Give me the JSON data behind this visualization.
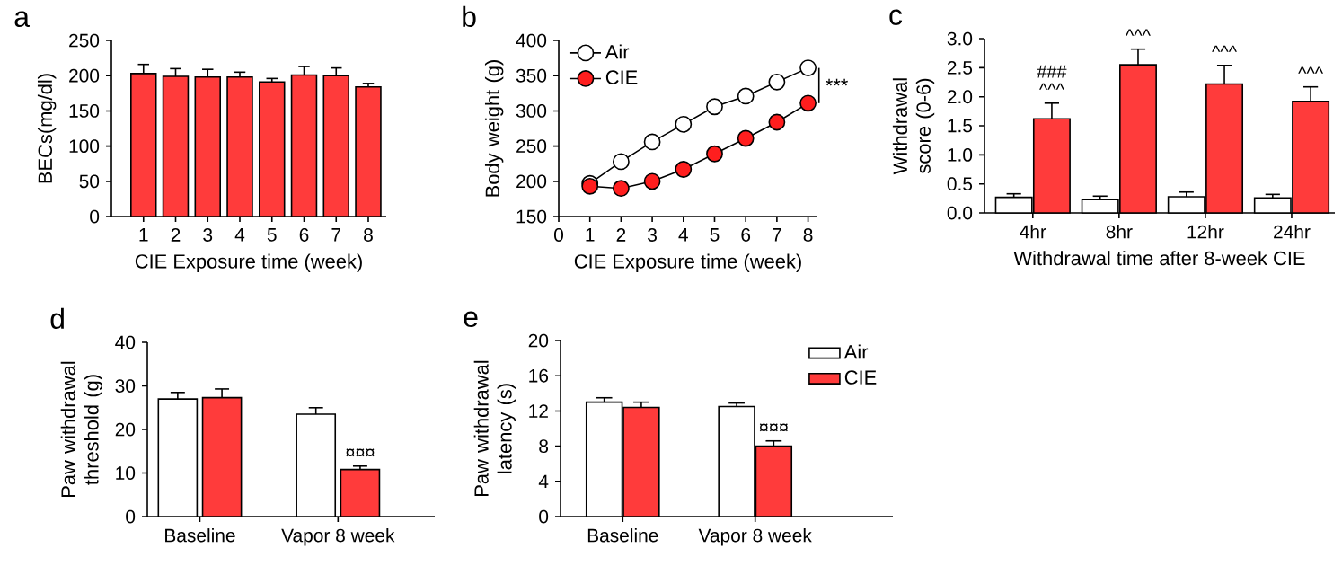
{
  "chart_data": [
    {
      "type": "bar",
      "title": "a",
      "xlabel": "CIE Exposure time (week)",
      "ylabel": "BECs(mg/dl)",
      "categories": [
        "1",
        "2",
        "3",
        "4",
        "5",
        "6",
        "7",
        "8"
      ],
      "values": [
        203,
        199,
        198,
        198,
        191,
        201,
        200,
        184
      ],
      "errors": [
        13,
        11,
        11,
        7,
        5,
        12,
        11,
        5
      ],
      "color": "#ff3b3b",
      "ylim": [
        0,
        250
      ],
      "yticks": [
        0,
        50,
        100,
        150,
        200,
        250
      ]
    },
    {
      "type": "line",
      "title": "b",
      "xlabel": "CIE Exposure time (week)",
      "ylabel": "Body weight (g)",
      "x": [
        1,
        2,
        3,
        4,
        5,
        6,
        7,
        8
      ],
      "series": [
        {
          "name": "Air",
          "color": "#ffffff",
          "values": [
            197,
            228,
            256,
            281,
            306,
            321,
            341,
            361
          ]
        },
        {
          "name": "CIE",
          "color": "#ff1e1e",
          "values": [
            193,
            190,
            200,
            217,
            239,
            261,
            284,
            311
          ]
        }
      ],
      "xlim": [
        0,
        8.3
      ],
      "xticks": [
        0,
        1,
        2,
        3,
        4,
        5,
        6,
        7,
        8
      ],
      "ylim": [
        150,
        400
      ],
      "yticks": [
        150,
        200,
        250,
        300,
        350,
        400
      ],
      "marker": "circle",
      "line_style": "solid",
      "legend": "top left",
      "annotations": [
        "***"
      ]
    },
    {
      "type": "bar",
      "title": "c",
      "xlabel": "Withdrawal time after 8-week CIE",
      "ylabel": "Withdrawal score (0-6)",
      "categories": [
        "4hr",
        "8hr",
        "12hr",
        "24hr"
      ],
      "series": [
        {
          "color": "#ffffff",
          "values": [
            0.27,
            0.23,
            0.28,
            0.26
          ],
          "errors": [
            0.06,
            0.06,
            0.08,
            0.06
          ]
        },
        {
          "color": "#ff3b3b",
          "values": [
            1.62,
            2.55,
            2.22,
            1.92
          ],
          "errors": [
            0.27,
            0.27,
            0.32,
            0.25
          ]
        }
      ],
      "ylim": [
        0,
        3
      ],
      "yticks": [
        {
          "value": 0,
          "label": "0.0"
        },
        {
          "value": 0.5,
          "label": "0.5"
        },
        {
          "value": 1,
          "label": "1.0"
        },
        {
          "value": 1.5,
          "label": "1.5"
        },
        {
          "value": 2,
          "label": "2.0"
        },
        {
          "value": 2.5,
          "label": "2.5"
        },
        {
          "value": 3,
          "label": "3.0"
        }
      ],
      "annotations": [
        "^^^",
        "###",
        "^^^",
        "^^^",
        "^^^"
      ]
    },
    {
      "type": "bar",
      "title": "d",
      "ylabel": "Paw withdrawal threshold (g)",
      "categories": [
        "Baseline",
        "Vapor 8 week"
      ],
      "series": [
        {
          "color": "#ffffff",
          "values": [
            27,
            23.5
          ],
          "errors": [
            1.5,
            1.5
          ]
        },
        {
          "color": "#ff3b3b",
          "values": [
            27.3,
            10.8
          ],
          "errors": [
            2,
            0.8
          ]
        }
      ],
      "ylim": [
        0,
        40
      ],
      "yticks": [
        0,
        10,
        20,
        30,
        40
      ],
      "annotations": [
        "¤¤¤"
      ]
    },
    {
      "type": "bar",
      "title": "e",
      "ylabel": "Paw withdrawal latency (s)",
      "categories": [
        "Baseline",
        "Vapor 8 week"
      ],
      "series": [
        {
          "name": "Air",
          "color": "#ffffff",
          "values": [
            13.0,
            12.5
          ],
          "errors": [
            0.5,
            0.4
          ]
        },
        {
          "name": "CIE",
          "color": "#ff3b3b",
          "values": [
            12.4,
            8.0
          ],
          "errors": [
            0.6,
            0.6
          ]
        }
      ],
      "ylim": [
        0,
        20
      ],
      "yticks": [
        0,
        4,
        8,
        12,
        16,
        20
      ],
      "legend": "top right",
      "annotations": [
        "¤¤¤"
      ]
    }
  ]
}
